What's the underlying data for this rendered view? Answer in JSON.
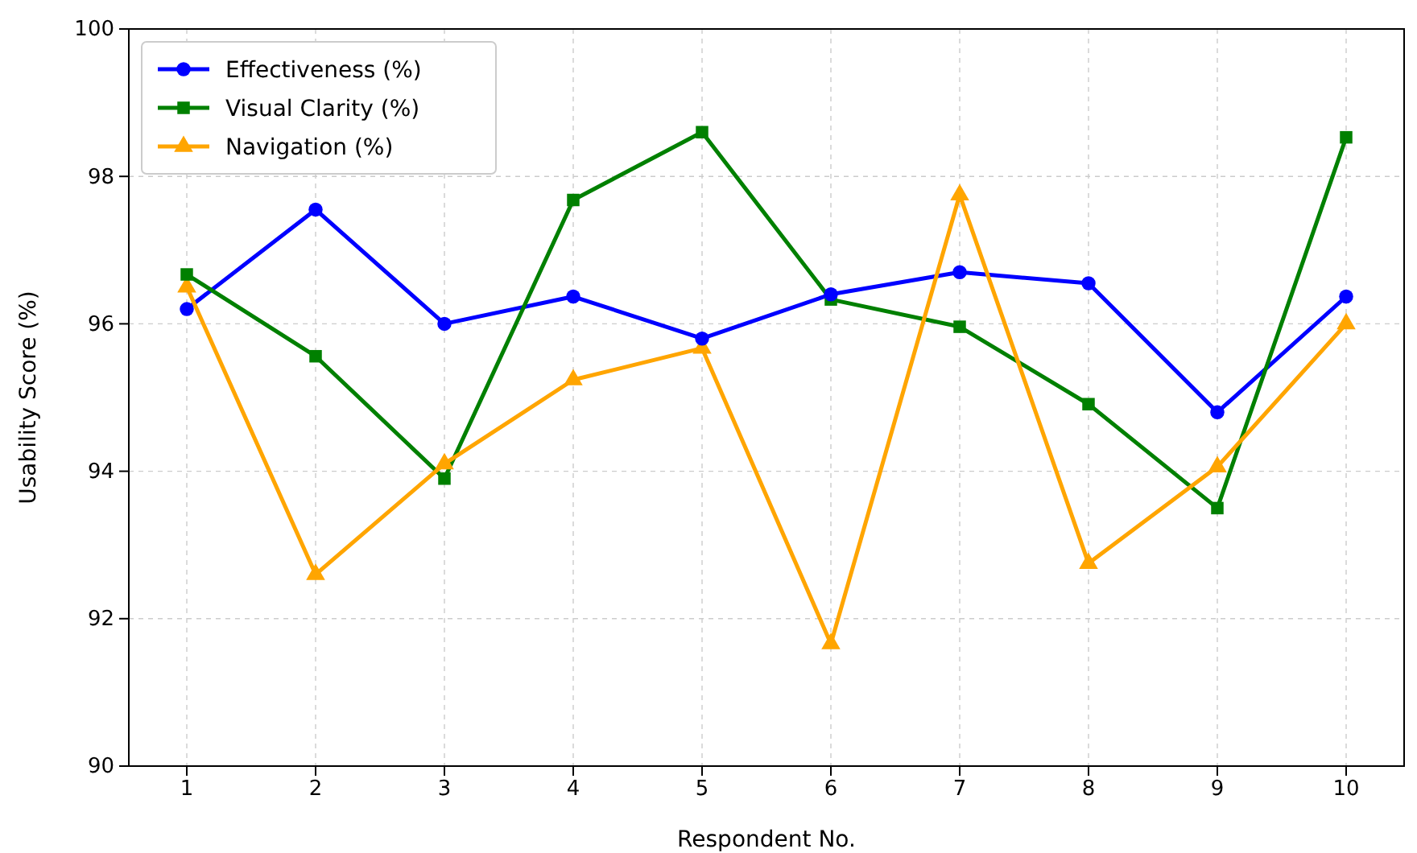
{
  "chart_data": {
    "type": "line",
    "xlabel": "Respondent No.",
    "ylabel": "Usability Score (%)",
    "x": [
      1,
      2,
      3,
      4,
      5,
      6,
      7,
      8,
      9,
      10
    ],
    "xlim": [
      0.55,
      10.45
    ],
    "xticks": [
      1,
      2,
      3,
      4,
      5,
      6,
      7,
      8,
      9,
      10
    ],
    "ylim": [
      90,
      100
    ],
    "yticks": [
      90,
      92,
      94,
      96,
      98,
      100
    ],
    "grid": true,
    "legend": "top left",
    "line_style": "solid",
    "series": [
      {
        "name": "Effectiveness (%)",
        "color": "#0000ff",
        "marker": "circle",
        "values": [
          96.2,
          97.55,
          96.0,
          96.37,
          95.8,
          96.4,
          96.7,
          96.55,
          94.8,
          96.37
        ]
      },
      {
        "name": "Visual Clarity (%)",
        "color": "#008000",
        "marker": "square",
        "values": [
          96.67,
          95.56,
          93.9,
          97.68,
          98.6,
          96.33,
          95.96,
          94.91,
          93.5,
          98.53
        ]
      },
      {
        "name": "Navigation (%)",
        "color": "#ffa500",
        "marker": "triangle",
        "values": [
          96.5,
          92.6,
          94.1,
          95.24,
          95.67,
          91.66,
          97.75,
          92.75,
          94.06,
          96.0
        ]
      }
    ]
  }
}
